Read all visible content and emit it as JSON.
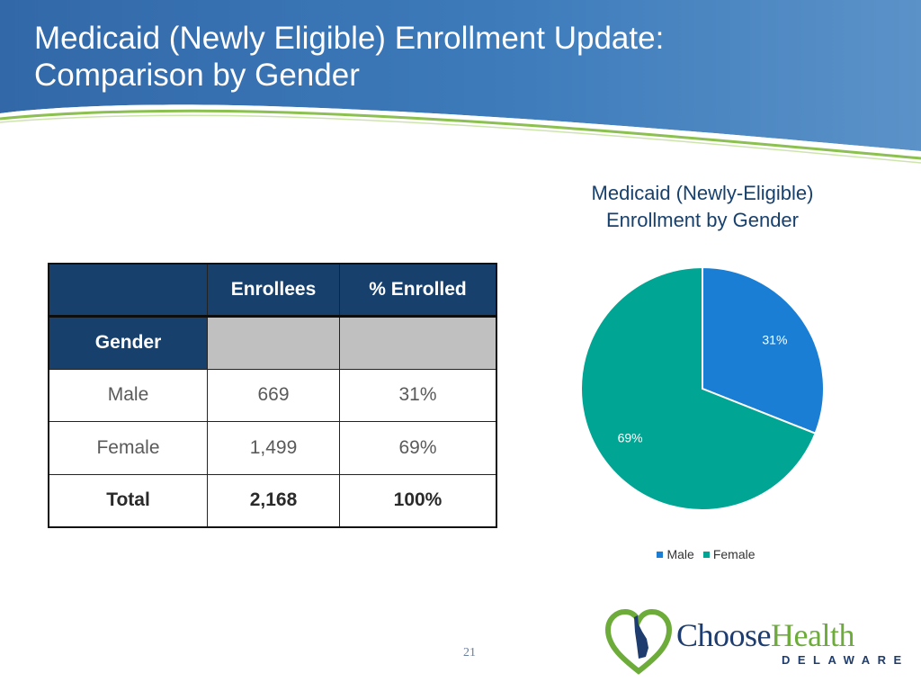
{
  "slide": {
    "title_line1": "Medicaid (Newly Eligible) Enrollment Update:",
    "title_line2": "Comparison by Gender",
    "page_number": "21"
  },
  "table": {
    "columns": [
      "",
      "Enrollees",
      "% Enrolled"
    ],
    "section_label": "Gender",
    "rows": [
      {
        "label": "Male",
        "enrollees": "669",
        "percent": "31%"
      },
      {
        "label": "Female",
        "enrollees": "1,499",
        "percent": "69%"
      }
    ],
    "total": {
      "label": "Total",
      "enrollees": "2,168",
      "percent": "100%"
    }
  },
  "chart_data": {
    "type": "pie",
    "title_line1": "Medicaid (Newly-Eligible)",
    "title_line2": "Enrollment by Gender",
    "categories": [
      "Male",
      "Female"
    ],
    "values": [
      31,
      69
    ],
    "data_labels": [
      "31%",
      "69%"
    ],
    "colors": [
      "#1a7fd4",
      "#00a593"
    ],
    "legend": [
      "Male",
      "Female"
    ],
    "legend_position": "bottom"
  },
  "logo": {
    "name_part1": "Choose",
    "name_part2": "Health",
    "subtitle": "DELAWARE",
    "icon": "heart-delaware-map-icon",
    "color_primary": "#1e3d6e",
    "color_accent": "#6dac3b"
  },
  "theme": {
    "header_blue": "#2c65a6",
    "table_header": "#17406d"
  }
}
